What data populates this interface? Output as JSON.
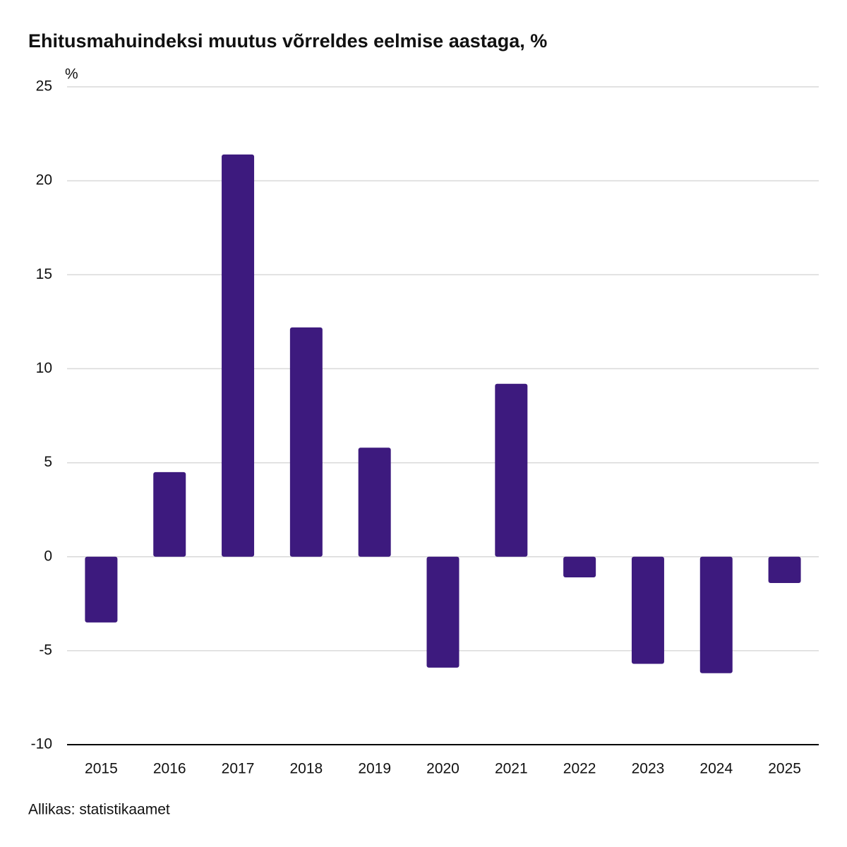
{
  "chart_data": {
    "type": "bar",
    "title": "Ehitusmahuindeksi muutus võrreldes eelmise aastaga, %",
    "y_unit": "%",
    "source": "Allikas: statistikaamet",
    "categories": [
      "2015",
      "2016",
      "2017",
      "2018",
      "2019",
      "2020",
      "2021",
      "2022",
      "2023",
      "2024",
      "2025"
    ],
    "values": [
      -3.5,
      4.5,
      21.4,
      12.2,
      5.8,
      -5.9,
      9.2,
      -1.1,
      -5.7,
      -6.2,
      -1.4
    ],
    "color": "#3d1a7e",
    "ylim": [
      -10,
      25
    ],
    "yticks": [
      -10,
      -5,
      0,
      5,
      10,
      15,
      20,
      25
    ],
    "grid": true
  }
}
